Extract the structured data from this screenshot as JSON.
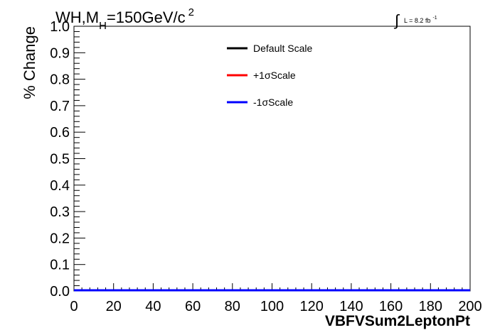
{
  "chart_data": {
    "type": "line",
    "title_parts": {
      "main": "WH,M",
      "subscript": "H",
      "rest": "=150GeV/c",
      "superscript": "2"
    },
    "lumi_parts": {
      "integral": "∫",
      "text": "L = 8.2 fb",
      "superscript": "-1"
    },
    "xlabel": "VBFVSum2LeptonPt",
    "ylabel": "% Change",
    "xlim": [
      0,
      200
    ],
    "ylim": [
      0,
      1.0
    ],
    "x_ticks": [
      0,
      20,
      40,
      60,
      80,
      100,
      120,
      140,
      160,
      180,
      200
    ],
    "x_tick_labels": [
      "0",
      "20",
      "40",
      "60",
      "80",
      "100",
      "120",
      "140",
      "160",
      "180",
      "200"
    ],
    "y_ticks": [
      0.0,
      0.1,
      0.2,
      0.3,
      0.4,
      0.5,
      0.6,
      0.7,
      0.8,
      0.9,
      1.0
    ],
    "y_tick_labels": [
      "0.0",
      "0.1",
      "0.2",
      "0.3",
      "0.4",
      "0.5",
      "0.6",
      "0.7",
      "0.8",
      "0.9",
      "1.0"
    ],
    "legend_position": "top-center",
    "grid": false,
    "series": [
      {
        "name": "Default Scale",
        "color": "#000000",
        "x": [
          0,
          200
        ],
        "y": [
          0,
          0
        ]
      },
      {
        "name": "+1σScale",
        "color": "#ff0000",
        "x": [
          0,
          200
        ],
        "y": [
          0,
          0
        ]
      },
      {
        "name": "-1σScale",
        "color": "#0000ff",
        "x": [
          0,
          200
        ],
        "y": [
          0,
          0
        ]
      }
    ]
  }
}
